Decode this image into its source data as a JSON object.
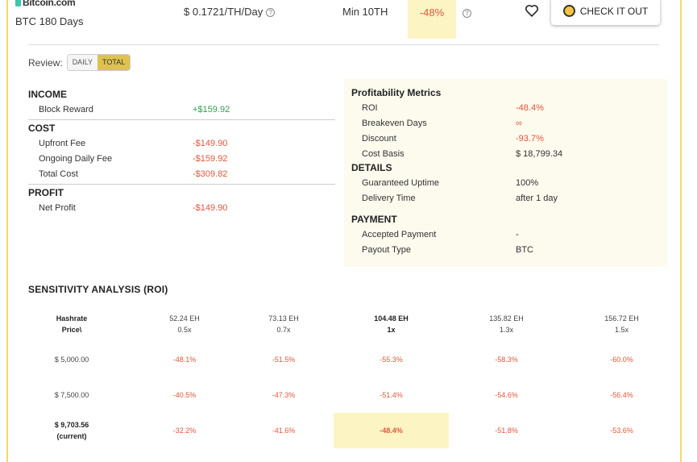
{
  "header": {
    "brand": "Bitcoin.com",
    "plan_name": "BTC 180 Days",
    "price": "$ 0.1721/TH/Day",
    "min_order": "Min 10TH",
    "roi": "-48%",
    "check_button": "CHECK IT OUT"
  },
  "review": {
    "label": "Review:",
    "options": [
      "DAILY",
      "TOTAL"
    ],
    "selected": "TOTAL"
  },
  "income": {
    "title": "INCOME",
    "rows": [
      {
        "label": "Block Reward",
        "value": "+$159.92"
      }
    ]
  },
  "cost": {
    "title": "COST",
    "rows": [
      {
        "label": "Upfront Fee",
        "value": "-$149.90"
      },
      {
        "label": "Ongoing Daily Fee",
        "value": "-$159.92"
      },
      {
        "label": "Total Cost",
        "value": "-$309.82"
      }
    ]
  },
  "profit": {
    "title": "PROFIT",
    "rows": [
      {
        "label": "Net Profit",
        "value": "-$149.90"
      }
    ]
  },
  "metrics": {
    "title": "Profitability Metrics",
    "rows": [
      {
        "label": "ROI",
        "value": "-48.4%"
      },
      {
        "label": "Breakeven Days",
        "value": "∞"
      },
      {
        "label": "Discount",
        "value": "-93.7%"
      },
      {
        "label": "Cost Basis",
        "value": "$ 18,799.34"
      }
    ]
  },
  "details": {
    "title": "DETAILS",
    "rows": [
      {
        "label": "Guaranteed Uptime",
        "value": "100%"
      },
      {
        "label": "Delivery Time",
        "value": "after 1 day"
      }
    ]
  },
  "payment": {
    "title": "PAYMENT",
    "rows": [
      {
        "label": "Accepted Payment",
        "value": "-"
      },
      {
        "label": "Payout Type",
        "value": "BTC"
      }
    ]
  },
  "sensitivity": {
    "title": "SENSITIVITY ANALYSIS (ROI)",
    "corner": [
      "Hashrate",
      "Price\\"
    ],
    "columns": [
      {
        "hashrate": "52.24 EH",
        "mult": "0.5x"
      },
      {
        "hashrate": "73.13 EH",
        "mult": "0.7x"
      },
      {
        "hashrate": "104.48 EH",
        "mult": "1x"
      },
      {
        "hashrate": "135.82 EH",
        "mult": "1.3x"
      },
      {
        "hashrate": "156.72 EH",
        "mult": "1.5x"
      }
    ],
    "rows": [
      {
        "price": "$ 5,000.00",
        "note": "",
        "values": [
          "-48.1%",
          "-51.5%",
          "-55.3%",
          "-58.3%",
          "-60.0%"
        ]
      },
      {
        "price": "$ 7,500.00",
        "note": "",
        "values": [
          "-40.5%",
          "-47.3%",
          "-51.4%",
          "-54.6%",
          "-56.4%"
        ]
      },
      {
        "price": "$ 9,703.56",
        "note": "(current)",
        "values": [
          "-32.2%",
          "-41.6%",
          "-48.4%",
          "-51.8%",
          "-53.6%"
        ]
      }
    ]
  }
}
